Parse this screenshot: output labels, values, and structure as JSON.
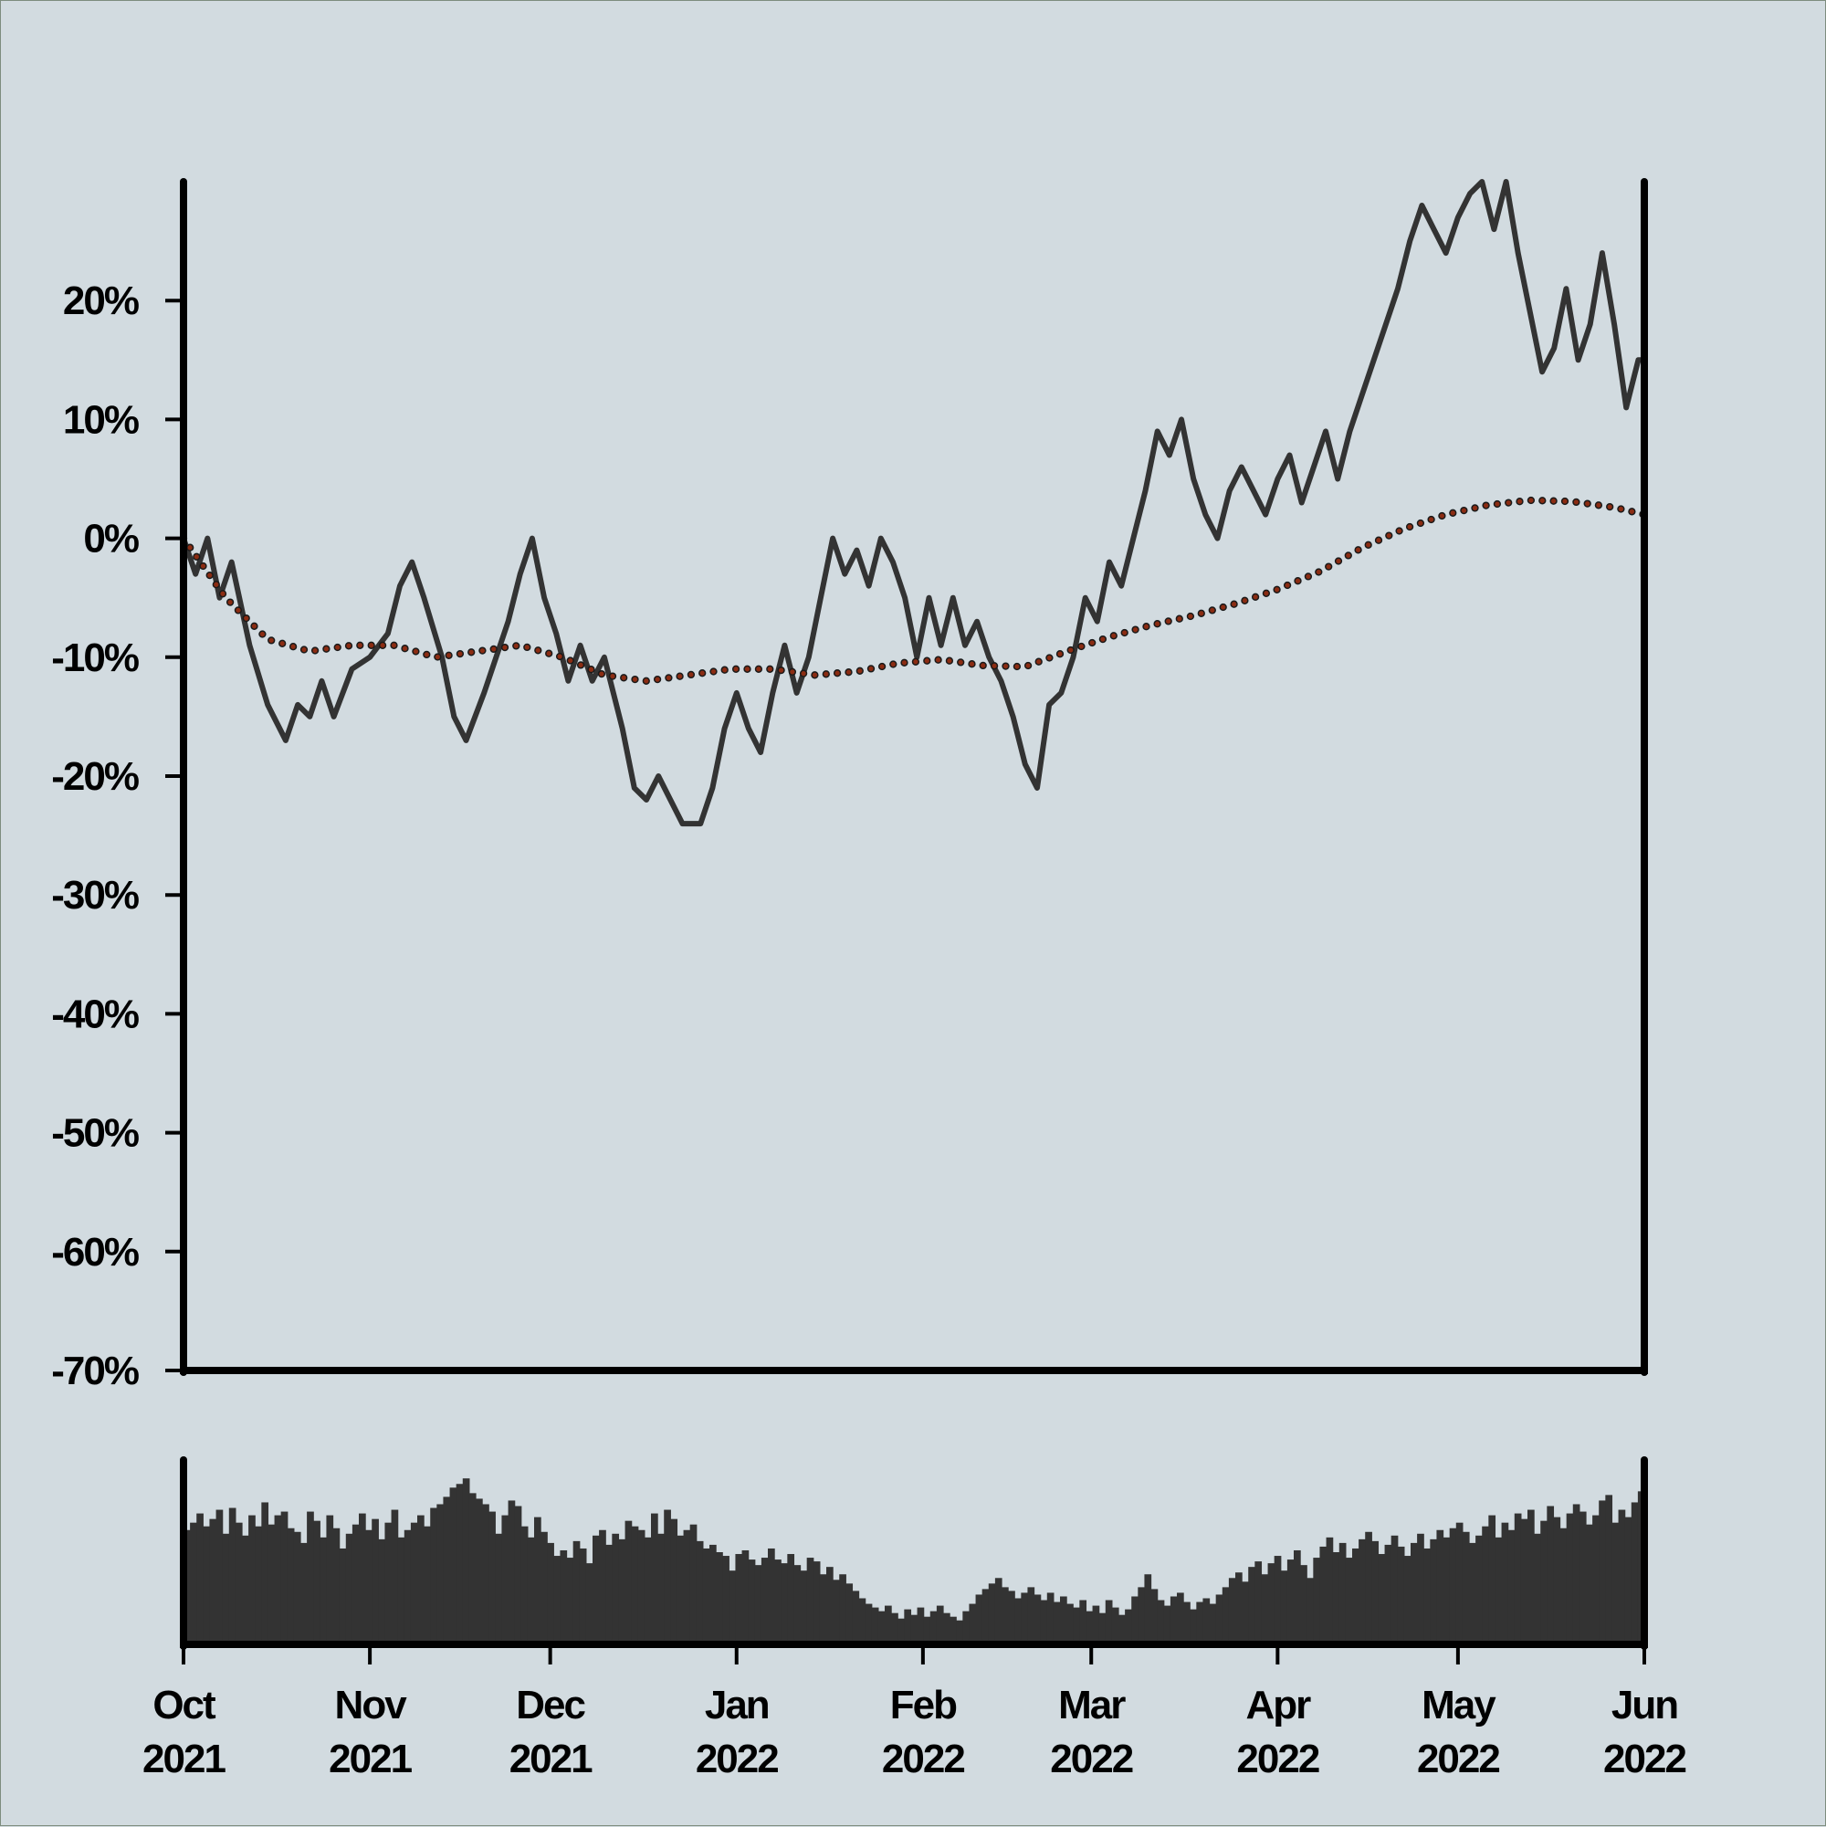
{
  "chart_data": {
    "type": "line",
    "title": "",
    "xlabel": "",
    "ylabel": "",
    "y_unit": "percent",
    "ylim": [
      -70,
      30
    ],
    "ytick_labels": [
      "20%",
      "10%",
      "0%",
      "-10%",
      "-20%",
      "-30%",
      "-40%",
      "-50%",
      "-60%",
      "-70%"
    ],
    "x_range": [
      "2021-10-01",
      "2022-06-01"
    ],
    "xtick_labels": [
      {
        "month": "Oct",
        "year": "2021"
      },
      {
        "month": "Nov",
        "year": "2021"
      },
      {
        "month": "Dec",
        "year": "2021"
      },
      {
        "month": "Jan",
        "year": "2022"
      },
      {
        "month": "Feb",
        "year": "2022"
      },
      {
        "month": "Mar",
        "year": "2022"
      },
      {
        "month": "Apr",
        "year": "2022"
      },
      {
        "month": "May",
        "year": "2022"
      },
      {
        "month": "Jun",
        "year": "2022"
      }
    ],
    "grid": false,
    "legend": "none",
    "colors": {
      "price": "#333333",
      "trend_fill": "#8b2c12",
      "trend_edge": "#1a1a1a",
      "volume": "#333333",
      "axes": "#000000",
      "background": "#d2dbe0"
    },
    "series": [
      {
        "style": "solid",
        "points": [
          [
            "2021-10-01",
            0
          ],
          [
            "2021-10-03",
            -3
          ],
          [
            "2021-10-05",
            0
          ],
          [
            "2021-10-07",
            -5
          ],
          [
            "2021-10-09",
            -2
          ],
          [
            "2021-10-12",
            -9
          ],
          [
            "2021-10-15",
            -14
          ],
          [
            "2021-10-18",
            -17
          ],
          [
            "2021-10-20",
            -14
          ],
          [
            "2021-10-22",
            -15
          ],
          [
            "2021-10-24",
            -12
          ],
          [
            "2021-10-26",
            -15
          ],
          [
            "2021-10-29",
            -11
          ],
          [
            "2021-11-01",
            -10
          ],
          [
            "2021-11-04",
            -8
          ],
          [
            "2021-11-06",
            -4
          ],
          [
            "2021-11-08",
            -2
          ],
          [
            "2021-11-10",
            -5
          ],
          [
            "2021-11-13",
            -10
          ],
          [
            "2021-11-15",
            -15
          ],
          [
            "2021-11-17",
            -17
          ],
          [
            "2021-11-20",
            -13
          ],
          [
            "2021-11-22",
            -10
          ],
          [
            "2021-11-24",
            -7
          ],
          [
            "2021-11-26",
            -3
          ],
          [
            "2021-11-28",
            0
          ],
          [
            "2021-11-30",
            -5
          ],
          [
            "2021-12-02",
            -8
          ],
          [
            "2021-12-04",
            -12
          ],
          [
            "2021-12-06",
            -9
          ],
          [
            "2021-12-08",
            -12
          ],
          [
            "2021-12-10",
            -10
          ],
          [
            "2021-12-13",
            -16
          ],
          [
            "2021-12-15",
            -21
          ],
          [
            "2021-12-17",
            -22
          ],
          [
            "2021-12-19",
            -20
          ],
          [
            "2021-12-21",
            -22
          ],
          [
            "2021-12-23",
            -24
          ],
          [
            "2021-12-26",
            -24
          ],
          [
            "2021-12-28",
            -21
          ],
          [
            "2021-12-30",
            -16
          ],
          [
            "2022-01-01",
            -13
          ],
          [
            "2022-01-03",
            -16
          ],
          [
            "2022-01-05",
            -18
          ],
          [
            "2022-01-07",
            -13
          ],
          [
            "2022-01-09",
            -9
          ],
          [
            "2022-01-11",
            -13
          ],
          [
            "2022-01-13",
            -10
          ],
          [
            "2022-01-15",
            -5
          ],
          [
            "2022-01-17",
            0
          ],
          [
            "2022-01-19",
            -3
          ],
          [
            "2022-01-21",
            -1
          ],
          [
            "2022-01-23",
            -4
          ],
          [
            "2022-01-25",
            0
          ],
          [
            "2022-01-27",
            -2
          ],
          [
            "2022-01-29",
            -5
          ],
          [
            "2022-01-31",
            -10
          ],
          [
            "2022-02-02",
            -5
          ],
          [
            "2022-02-04",
            -9
          ],
          [
            "2022-02-06",
            -5
          ],
          [
            "2022-02-08",
            -9
          ],
          [
            "2022-02-10",
            -7
          ],
          [
            "2022-02-12",
            -10
          ],
          [
            "2022-02-14",
            -12
          ],
          [
            "2022-02-16",
            -15
          ],
          [
            "2022-02-18",
            -19
          ],
          [
            "2022-02-20",
            -21
          ],
          [
            "2022-02-22",
            -14
          ],
          [
            "2022-02-24",
            -13
          ],
          [
            "2022-02-26",
            -10
          ],
          [
            "2022-02-28",
            -5
          ],
          [
            "2022-03-02",
            -7
          ],
          [
            "2022-03-04",
            -2
          ],
          [
            "2022-03-06",
            -4
          ],
          [
            "2022-03-08",
            0
          ],
          [
            "2022-03-10",
            4
          ],
          [
            "2022-03-12",
            9
          ],
          [
            "2022-03-14",
            7
          ],
          [
            "2022-03-16",
            10
          ],
          [
            "2022-03-18",
            5
          ],
          [
            "2022-03-20",
            2
          ],
          [
            "2022-03-22",
            0
          ],
          [
            "2022-03-24",
            4
          ],
          [
            "2022-03-26",
            6
          ],
          [
            "2022-03-28",
            4
          ],
          [
            "2022-03-30",
            2
          ],
          [
            "2022-04-01",
            5
          ],
          [
            "2022-04-03",
            7
          ],
          [
            "2022-04-05",
            3
          ],
          [
            "2022-04-07",
            6
          ],
          [
            "2022-04-09",
            9
          ],
          [
            "2022-04-11",
            5
          ],
          [
            "2022-04-13",
            9
          ],
          [
            "2022-04-15",
            12
          ],
          [
            "2022-04-17",
            15
          ],
          [
            "2022-04-19",
            18
          ],
          [
            "2022-04-21",
            21
          ],
          [
            "2022-04-23",
            25
          ],
          [
            "2022-04-25",
            28
          ],
          [
            "2022-04-27",
            26
          ],
          [
            "2022-04-29",
            24
          ],
          [
            "2022-05-01",
            27
          ],
          [
            "2022-05-03",
            29
          ],
          [
            "2022-05-05",
            30
          ],
          [
            "2022-05-07",
            26
          ],
          [
            "2022-05-09",
            30
          ],
          [
            "2022-05-11",
            24
          ],
          [
            "2022-05-13",
            19
          ],
          [
            "2022-05-15",
            14
          ],
          [
            "2022-05-17",
            16
          ],
          [
            "2022-05-19",
            21
          ],
          [
            "2022-05-21",
            15
          ],
          [
            "2022-05-23",
            18
          ],
          [
            "2022-05-25",
            24
          ],
          [
            "2022-05-27",
            18
          ],
          [
            "2022-05-29",
            11
          ],
          [
            "2022-05-31",
            15
          ],
          [
            "2022-06-01",
            15
          ]
        ]
      },
      {
        "style": "dotted",
        "points": [
          [
            "2021-10-01",
            0
          ],
          [
            "2021-10-08",
            -5
          ],
          [
            "2021-10-15",
            -8.5
          ],
          [
            "2021-10-22",
            -9.5
          ],
          [
            "2021-10-29",
            -9
          ],
          [
            "2021-11-05",
            -9
          ],
          [
            "2021-11-12",
            -10
          ],
          [
            "2021-11-19",
            -9.5
          ],
          [
            "2021-11-26",
            -9
          ],
          [
            "2021-12-03",
            -10
          ],
          [
            "2021-12-10",
            -11.5
          ],
          [
            "2021-12-17",
            -12
          ],
          [
            "2021-12-24",
            -11.5
          ],
          [
            "2021-12-31",
            -11
          ],
          [
            "2022-01-07",
            -11
          ],
          [
            "2022-01-14",
            -11.5
          ],
          [
            "2022-01-21",
            -11.2
          ],
          [
            "2022-01-28",
            -10.5
          ],
          [
            "2022-02-04",
            -10.2
          ],
          [
            "2022-02-11",
            -10.7
          ],
          [
            "2022-02-18",
            -10.8
          ],
          [
            "2022-02-25",
            -9.5
          ],
          [
            "2022-03-04",
            -8.3
          ],
          [
            "2022-03-11",
            -7.3
          ],
          [
            "2022-03-18",
            -6.5
          ],
          [
            "2022-03-25",
            -5.5
          ],
          [
            "2022-04-01",
            -4.3
          ],
          [
            "2022-04-08",
            -2.8
          ],
          [
            "2022-04-15",
            -0.8
          ],
          [
            "2022-04-22",
            0.8
          ],
          [
            "2022-04-29",
            2
          ],
          [
            "2022-05-06",
            2.8
          ],
          [
            "2022-05-13",
            3.2
          ],
          [
            "2022-05-20",
            3.1
          ],
          [
            "2022-05-27",
            2.6
          ],
          [
            "2022-06-01",
            2
          ]
        ]
      }
    ],
    "volume": {
      "type": "bar",
      "ylim": [
        0,
        100
      ],
      "relative_values": [
        62,
        66,
        71,
        64,
        68,
        73,
        60,
        74,
        66,
        59,
        70,
        64,
        77,
        65,
        70,
        72,
        63,
        61,
        55,
        72,
        67,
        58,
        70,
        63,
        52,
        60,
        65,
        71,
        62,
        68,
        57,
        66,
        73,
        58,
        62,
        66,
        70,
        64,
        74,
        76,
        80,
        85,
        87,
        90,
        82,
        79,
        76,
        72,
        60,
        70,
        78,
        75,
        64,
        58,
        69,
        61,
        55,
        48,
        51,
        47,
        56,
        52,
        44,
        59,
        62,
        54,
        60,
        57,
        67,
        64,
        62,
        58,
        71,
        60,
        73,
        68,
        59,
        62,
        65,
        56,
        52,
        54,
        50,
        48,
        40,
        49,
        51,
        46,
        43,
        47,
        52,
        46,
        44,
        49,
        43,
        40,
        47,
        45,
        38,
        42,
        35,
        38,
        33,
        29,
        25,
        22,
        20,
        18,
        21,
        17,
        14,
        19,
        16,
        20,
        15,
        18,
        21,
        17,
        15,
        13,
        18,
        22,
        27,
        30,
        33,
        36,
        31,
        29,
        25,
        28,
        31,
        27,
        24,
        28,
        23,
        26,
        22,
        20,
        24,
        18,
        21,
        17,
        24,
        20,
        16,
        19,
        26,
        31,
        38,
        30,
        24,
        21,
        26,
        28,
        23,
        19,
        23,
        25,
        22,
        27,
        31,
        36,
        39,
        34,
        42,
        45,
        38,
        44,
        48,
        40,
        46,
        51,
        43,
        36,
        47,
        53,
        58,
        50,
        55,
        47,
        52,
        57,
        61,
        56,
        49,
        54,
        59,
        53,
        48,
        55,
        60,
        52,
        57,
        62,
        58,
        63,
        66,
        61,
        55,
        59,
        64,
        70,
        58,
        66,
        62,
        71,
        68,
        73,
        60,
        67,
        75,
        69,
        63,
        71,
        76,
        72,
        65,
        70,
        78,
        81,
        66,
        73,
        69,
        77,
        83
      ]
    }
  }
}
